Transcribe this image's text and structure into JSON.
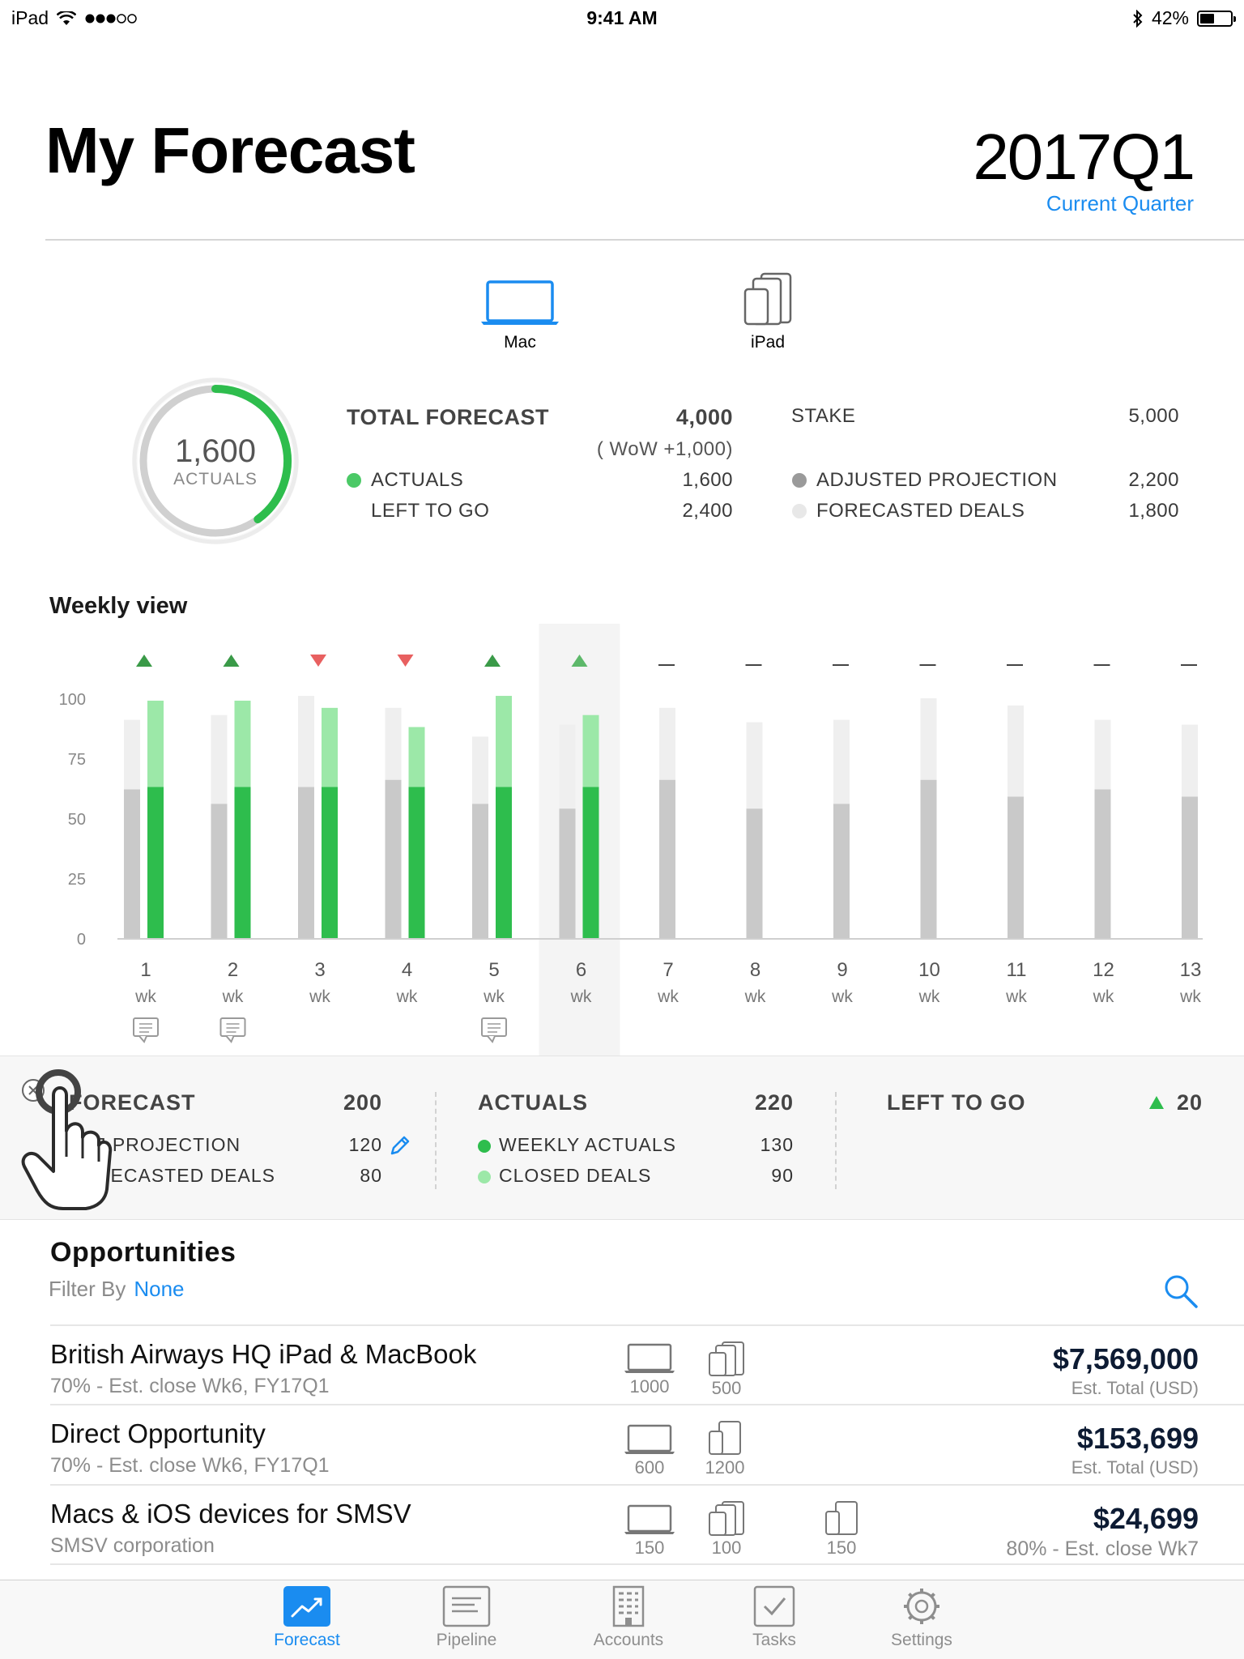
{
  "status": {
    "device": "iPad",
    "time": "9:41 AM",
    "battery": "42%"
  },
  "header": {
    "title": "My Forecast",
    "quarter": "2017Q1",
    "quarter_sub": "Current Quarter"
  },
  "product_tabs": [
    {
      "label": "Mac",
      "icon": "laptop-icon",
      "active": true
    },
    {
      "label": "iPad",
      "icon": "ipad-stack-icon",
      "active": false
    }
  ],
  "ring": {
    "value": "1,600",
    "label": "ACTUALS",
    "progress": 0.4
  },
  "summary": {
    "total_forecast_label": "TOTAL FORECAST",
    "total_forecast_value": "4,000",
    "wow": "( WoW +1,000)",
    "actuals_label": "ACTUALS",
    "actuals_value": "1,600",
    "left_label": "LEFT TO GO",
    "left_value": "2,400",
    "stake_label": "STAKE",
    "stake_value": "5,000",
    "adj_label": "ADJUSTED PROJECTION",
    "adj_value": "2,200",
    "fd_label": "FORECASTED DEALS",
    "fd_value": "1,800"
  },
  "weekly": {
    "title": "Weekly view"
  },
  "chart_data": {
    "type": "bar",
    "ylim": [
      0,
      100
    ],
    "yticks": [
      "0",
      "25",
      "50",
      "75",
      "100"
    ],
    "categories": [
      "1",
      "2",
      "3",
      "4",
      "5",
      "6",
      "7",
      "8",
      "9",
      "10",
      "11",
      "12",
      "13"
    ],
    "category_sublabel": "wk",
    "selected_week": "6",
    "series": [
      {
        "name": "ADJUSTED PROJECTION",
        "color": "#c9c9c9",
        "values": [
          62,
          56,
          63,
          66,
          56,
          54,
          66,
          54,
          56,
          66,
          59,
          62,
          59
        ]
      },
      {
        "name": "FORECASTED DEALS",
        "color": "#efefef",
        "values": [
          29,
          37,
          38,
          30,
          28,
          35,
          30,
          36,
          35,
          34,
          38,
          29,
          30
        ]
      },
      {
        "name": "WEEKLY ACTUALS",
        "color": "#2ebd4d",
        "values": [
          63,
          63,
          63,
          63,
          63,
          63,
          null,
          null,
          null,
          null,
          null,
          null,
          null
        ]
      },
      {
        "name": "CLOSED DEALS",
        "color": "#9ce8a8",
        "values": [
          36,
          36,
          33,
          25,
          38,
          30,
          null,
          null,
          null,
          null,
          null,
          null,
          null
        ]
      }
    ],
    "trend": [
      "up",
      "up",
      "down",
      "down",
      "up",
      "up",
      "flat",
      "flat",
      "flat",
      "flat",
      "flat",
      "flat",
      "flat"
    ],
    "comments": [
      true,
      true,
      false,
      false,
      true,
      false,
      false,
      false,
      false,
      false,
      false,
      false,
      false
    ]
  },
  "detail": {
    "forecast_label": "FORECAST",
    "forecast_value": "200",
    "adj_label": "ADJ PROJECTION",
    "adj_value": "120",
    "fd_label": "FORECASTED DEALS",
    "fd_value": "80",
    "actuals_label": "ACTUALS",
    "actuals_value": "220",
    "weekly_label": "WEEKLY ACTUALS",
    "weekly_value": "130",
    "closed_label": "CLOSED DEALS",
    "closed_value": "90",
    "left_label": "LEFT TO GO",
    "left_value": "20"
  },
  "opportunities": {
    "title": "Opportunities",
    "filter_label": "Filter By",
    "filter_value": "None",
    "rows": [
      {
        "name": "British Airways HQ iPad & MacBook",
        "sub": "70% - Est. close Wk6, FY17Q1",
        "amount": "$7,569,000",
        "amount_sub": "Est. Total (USD)",
        "dev1": "1000",
        "dev2": "500"
      },
      {
        "name": "Direct Opportunity",
        "sub": "70% - Est. close Wk6, FY17Q1",
        "amount": "$153,699",
        "amount_sub": "Est. Total (USD)",
        "dev1": "600",
        "dev2": "1200"
      },
      {
        "name": "Macs & iOS devices for SMSV",
        "sub": "SMSV corporation",
        "amount": "$24,699",
        "amount_sub": "80% - Est. close Wk7",
        "dev1": "150",
        "dev2": "100",
        "dev3": "150"
      }
    ]
  },
  "tabbar": [
    {
      "label": "Forecast",
      "icon": "forecast-icon",
      "active": true
    },
    {
      "label": "Pipeline",
      "icon": "pipeline-icon",
      "active": false
    },
    {
      "label": "Accounts",
      "icon": "accounts-icon",
      "active": false
    },
    {
      "label": "Tasks",
      "icon": "tasks-icon",
      "active": false
    },
    {
      "label": "Settings",
      "icon": "settings-icon",
      "active": false
    }
  ]
}
